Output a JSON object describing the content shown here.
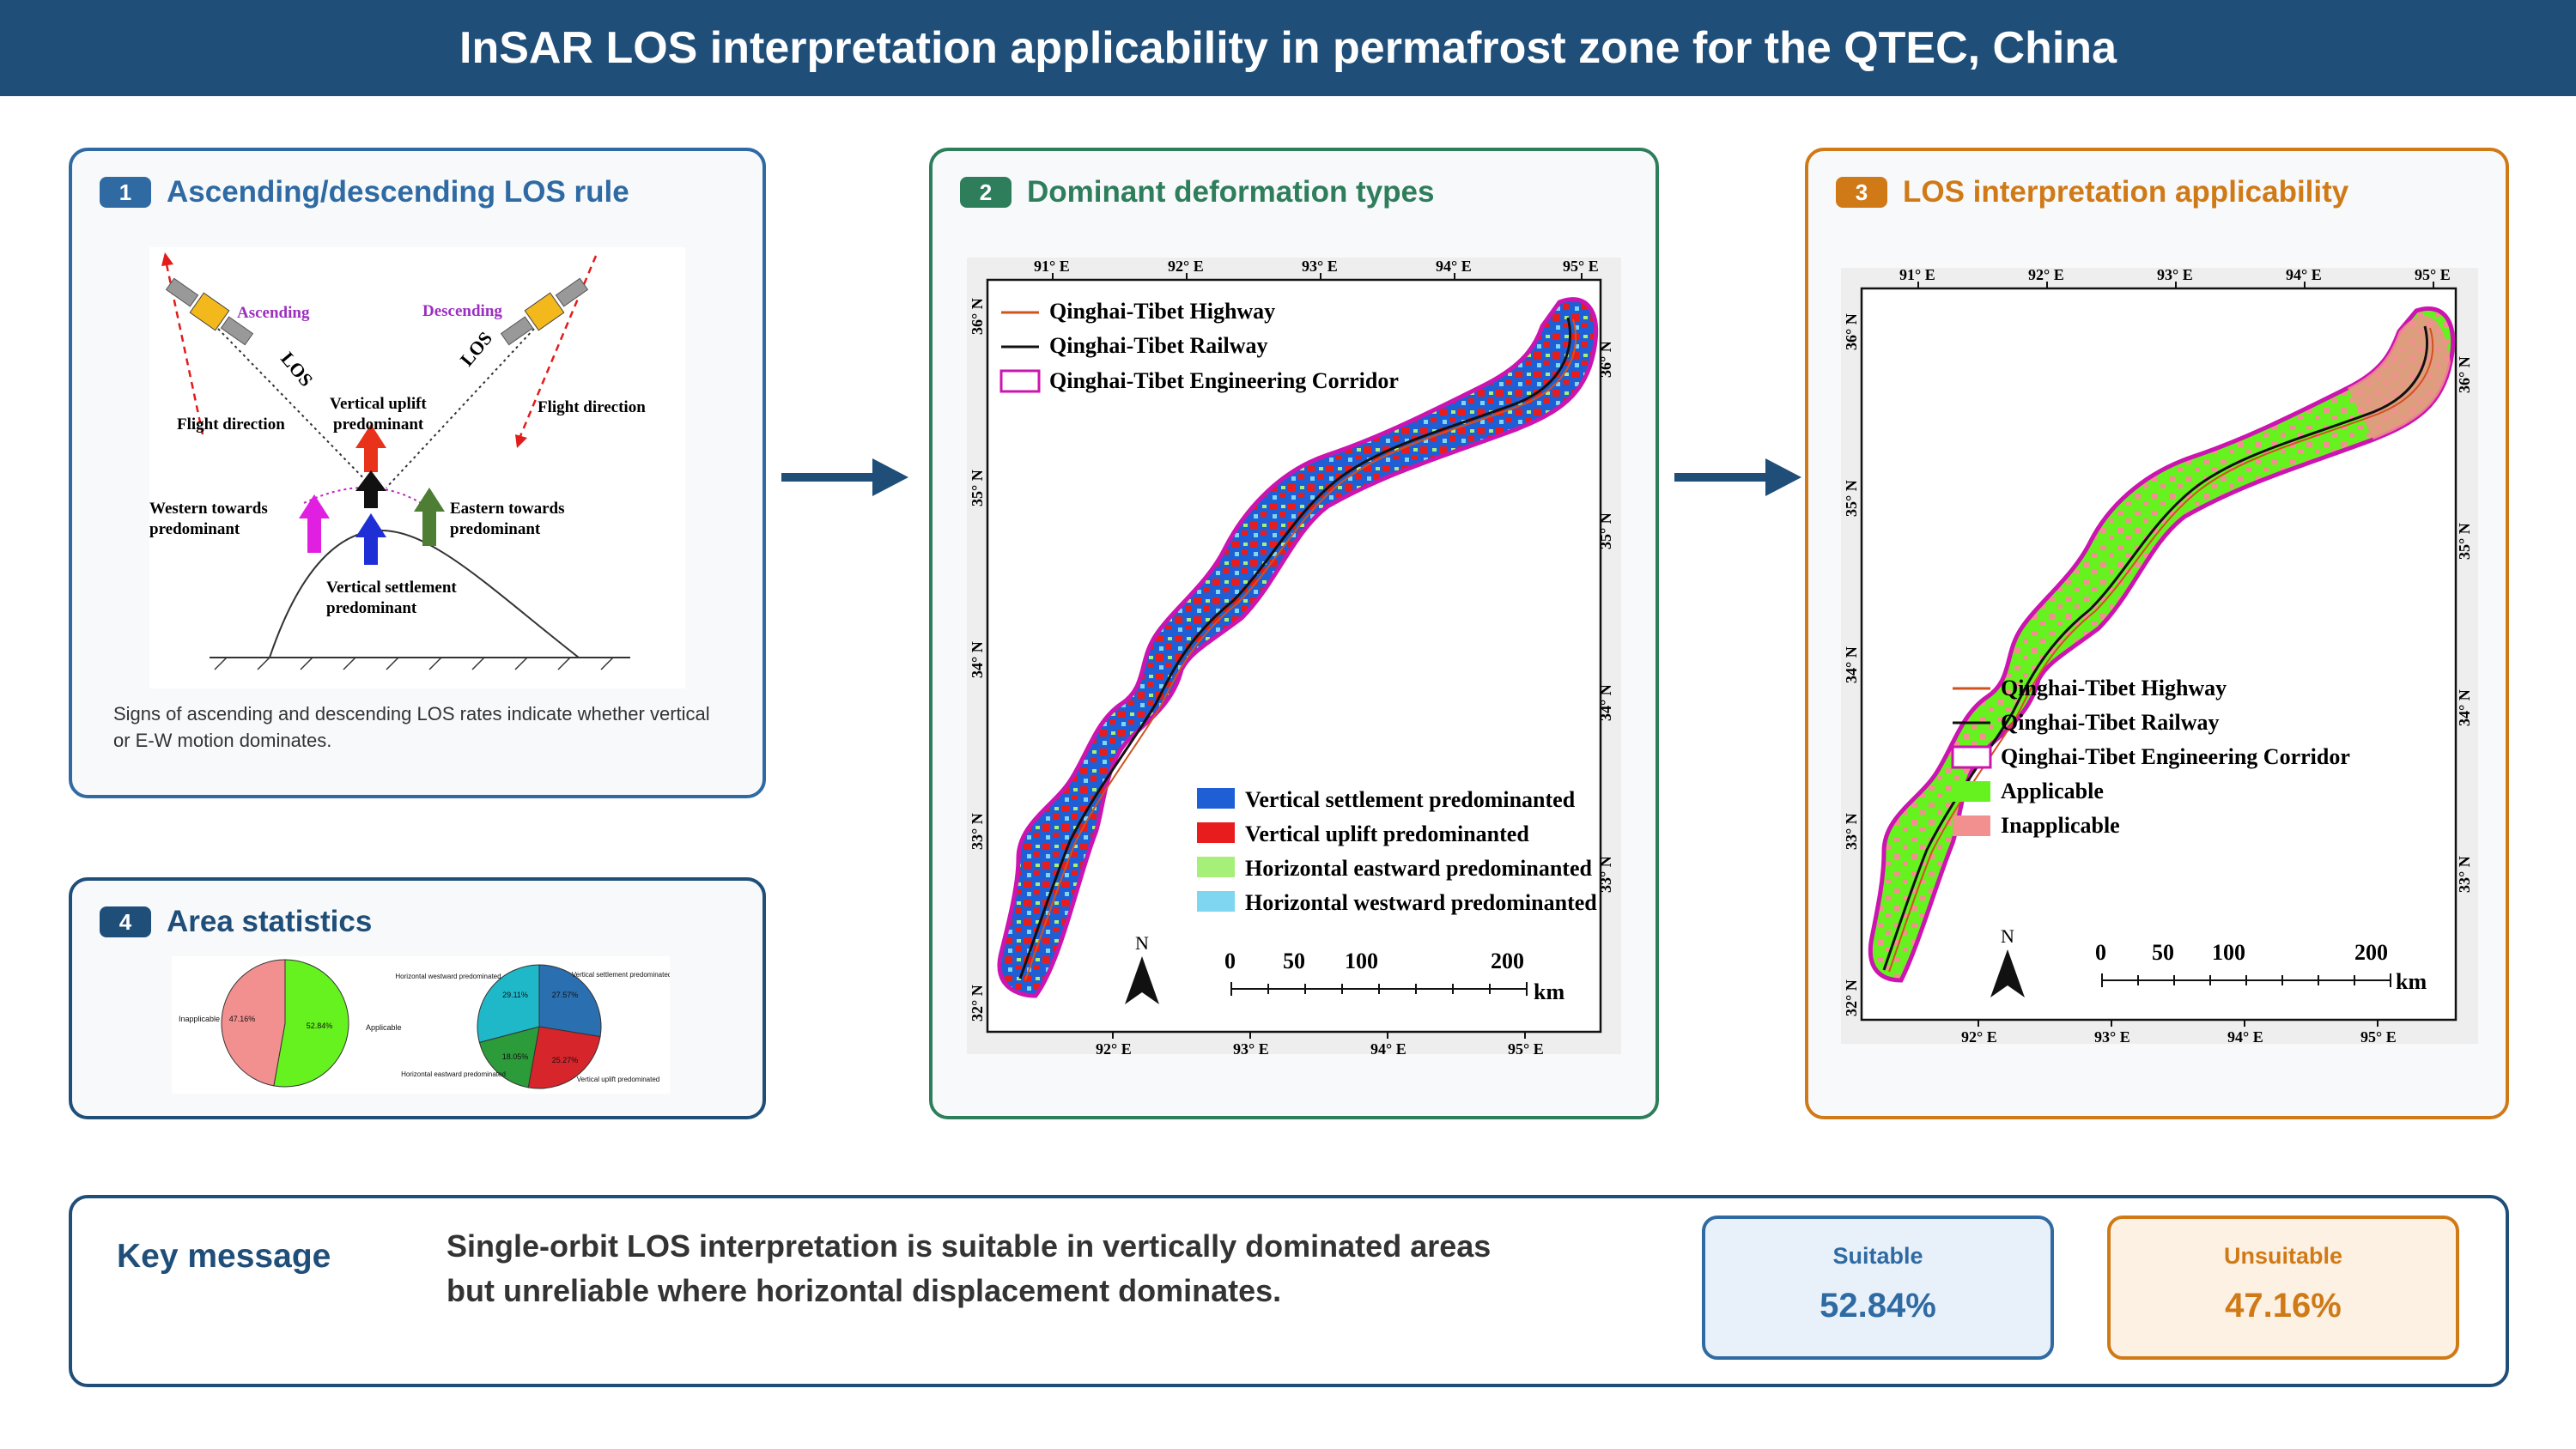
{
  "header": {
    "title": "InSAR LOS interpretation applicability in permafrost zone for the QTEC, China"
  },
  "colors": {
    "blue_panel": "#2f6aa3",
    "green_panel": "#2e7d5b",
    "orange_panel": "#d07a17",
    "navy": "#1f4e79",
    "settlement": "#1f5fd6",
    "uplift": "#e81c1c",
    "eastward": "#a6f07a",
    "westward": "#7fd6f0",
    "applicable": "#66f21e",
    "inapplicable": "#f28f8f",
    "corridor": "#cc14b0"
  },
  "panel1": {
    "number": "1",
    "title": "Ascending/descending LOS rule",
    "diagram": {
      "ascending": "Ascending",
      "descending": "Descending",
      "los": "LOS",
      "flight_left": "Flight direction",
      "flight_right": "Flight direction",
      "uplift_1": "Vertical uplift",
      "uplift_2": "predominant",
      "western_1": "Western towards",
      "western_2": "predominant",
      "eastern_1": "Eastern towards",
      "eastern_2": "predominant",
      "settle_1": "Vertical settlement",
      "settle_2": "predominant"
    },
    "caption": "Signs of ascending and descending LOS rates indicate whether vertical or E-W motion dominates."
  },
  "panel2": {
    "number": "2",
    "title": "Dominant deformation types",
    "top_lon": [
      "91° E",
      "92° E",
      "93° E",
      "94° E",
      "95° E"
    ],
    "bottom_lon": [
      "92° E",
      "93° E",
      "94° E",
      "95° E"
    ],
    "left_lat": [
      "36° N",
      "35° N",
      "34° N",
      "33° N",
      "32° N"
    ],
    "right_lat": [
      "36° N",
      "35° N",
      "34° N",
      "33° N"
    ],
    "line_legend": [
      "Qinghai-Tibet Highway",
      "Qinghai-Tibet Railway",
      "Qinghai-Tibet Engineering Corridor"
    ],
    "class_legend": [
      "Vertical settlement predominanted",
      "Vertical uplift predominanted",
      "Horizontal eastward predominanted",
      "Horizontal westward predominanted"
    ],
    "north": "N",
    "scale_ticks": [
      "0",
      "50",
      "100",
      "200"
    ],
    "scale_unit": "km"
  },
  "panel3": {
    "number": "3",
    "title": "LOS interpretation applicability",
    "top_lon": [
      "91° E",
      "92° E",
      "93° E",
      "94° E",
      "95° E"
    ],
    "bottom_lon": [
      "92° E",
      "93° E",
      "94° E",
      "95° E"
    ],
    "left_lat": [
      "36° N",
      "35° N",
      "34° N",
      "33° N",
      "32° N"
    ],
    "right_lat": [
      "36° N",
      "35° N",
      "34° N",
      "33° N"
    ],
    "legend": [
      "Qinghai-Tibet Highway",
      "Qinghai-Tibet Railway",
      "Qinghai-Tibet Engineering Corridor",
      "Applicable",
      "Inapplicable"
    ],
    "north": "N",
    "scale_ticks": [
      "0",
      "50",
      "100",
      "200"
    ],
    "scale_unit": "km"
  },
  "panel4": {
    "number": "4",
    "title": "Area statistics",
    "pie1": {
      "labels": [
        "Applicable",
        "Inapplicable"
      ],
      "values": [
        52.84,
        47.16
      ],
      "pct": [
        "52.84%",
        "47.16%"
      ]
    },
    "pie2": {
      "labels": [
        "Vertical settlement predominated",
        "Vertical uplift predominated",
        "Horizontal eastward predominated",
        "Horizontal westward predominated"
      ],
      "values": [
        27.57,
        25.27,
        18.05,
        29.11
      ],
      "pct": [
        "27.57%",
        "25.27%",
        "18.05%",
        "29.11%"
      ]
    }
  },
  "key": {
    "title": "Key message",
    "line1": "Single-orbit LOS interpretation is suitable in vertically dominated areas",
    "line2": "but unreliable where horizontal displacement dominates.",
    "suitable_label": "Suitable",
    "suitable_value": "52.84%",
    "unsuitable_label": "Unsuitable",
    "unsuitable_value": "47.16%"
  }
}
